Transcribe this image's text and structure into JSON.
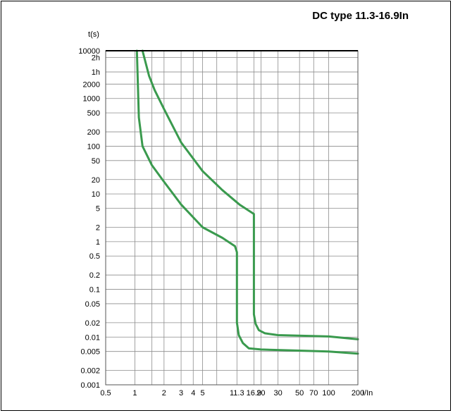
{
  "chart_data": {
    "type": "line",
    "title": "DC type 11.3-16.9In",
    "xlabel": "I/In",
    "ylabel": "t(s)",
    "x_scale": "log",
    "y_scale": "log",
    "xlim": [
      0.5,
      200
    ],
    "ylim": [
      0.001,
      10000
    ],
    "grid": true,
    "x_ticks": [
      {
        "label": "0.5",
        "value": 0.5
      },
      {
        "label": "1",
        "value": 1
      },
      {
        "label": "2",
        "value": 2
      },
      {
        "label": "3",
        "value": 3
      },
      {
        "label": "4",
        "value": 4
      },
      {
        "label": "5",
        "value": 5
      },
      {
        "label": "11.3",
        "value": 11.3
      },
      {
        "label": "16.9",
        "value": 16.9
      },
      {
        "label": "20",
        "value": 20
      },
      {
        "label": "30",
        "value": 30
      },
      {
        "label": "50",
        "value": 50
      },
      {
        "label": "70",
        "value": 70
      },
      {
        "label": "100",
        "value": 100
      },
      {
        "label": "200",
        "value": 200
      }
    ],
    "x_gridlines": [
      0.5,
      1,
      1.5,
      2,
      3,
      4,
      5,
      7,
      11.3,
      16.9,
      20,
      30,
      50,
      70,
      100,
      200
    ],
    "y_ticks": [
      {
        "label": "10000",
        "value": 10000
      },
      {
        "label": "2h",
        "value": 7200
      },
      {
        "label": "1h",
        "value": 3600
      },
      {
        "label": "2000",
        "value": 2000
      },
      {
        "label": "1000",
        "value": 1000
      },
      {
        "label": "500",
        "value": 500
      },
      {
        "label": "200",
        "value": 200
      },
      {
        "label": "100",
        "value": 100
      },
      {
        "label": "50",
        "value": 50
      },
      {
        "label": "20",
        "value": 20
      },
      {
        "label": "10",
        "value": 10
      },
      {
        "label": "5",
        "value": 5
      },
      {
        "label": "2",
        "value": 2
      },
      {
        "label": "1",
        "value": 1
      },
      {
        "label": "0.5",
        "value": 0.5
      },
      {
        "label": "0.2",
        "value": 0.2
      },
      {
        "label": "0.1",
        "value": 0.1
      },
      {
        "label": "0.05",
        "value": 0.05
      },
      {
        "label": "0.02",
        "value": 0.02
      },
      {
        "label": "0.01",
        "value": 0.01
      },
      {
        "label": "0.005",
        "value": 0.005
      },
      {
        "label": "0.002",
        "value": 0.002
      },
      {
        "label": "0.001",
        "value": 0.001
      }
    ],
    "series": [
      {
        "color": "#3a9a4e",
        "points": [
          [
            1.05,
            10000
          ],
          [
            1.1,
            400
          ],
          [
            1.2,
            100
          ],
          [
            1.5,
            40
          ],
          [
            2,
            18
          ],
          [
            3,
            6
          ],
          [
            5,
            2
          ],
          [
            8,
            1.2
          ],
          [
            10.8,
            0.8
          ],
          [
            11.3,
            0.6
          ],
          [
            11.3,
            0.05
          ],
          [
            11.3,
            0.02
          ],
          [
            11.8,
            0.011
          ],
          [
            13,
            0.0075
          ],
          [
            15,
            0.0058
          ],
          [
            20,
            0.0055
          ],
          [
            50,
            0.0052
          ],
          [
            100,
            0.005
          ],
          [
            200,
            0.0045
          ]
        ]
      },
      {
        "color": "#3a9a4e",
        "points": [
          [
            1.2,
            10000
          ],
          [
            1.4,
            3000
          ],
          [
            1.6,
            1500
          ],
          [
            2,
            600
          ],
          [
            3,
            120
          ],
          [
            5,
            30
          ],
          [
            8,
            12
          ],
          [
            12,
            6
          ],
          [
            16.9,
            3.8
          ],
          [
            16.9,
            0.1
          ],
          [
            16.9,
            0.03
          ],
          [
            17.6,
            0.019
          ],
          [
            19,
            0.014
          ],
          [
            22,
            0.012
          ],
          [
            30,
            0.011
          ],
          [
            100,
            0.0103
          ],
          [
            200,
            0.009
          ]
        ]
      }
    ]
  }
}
